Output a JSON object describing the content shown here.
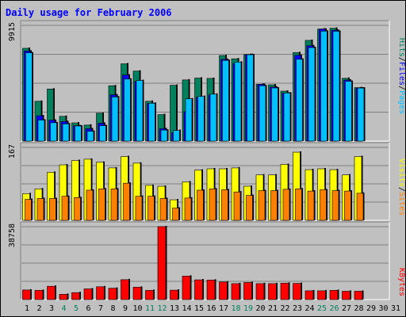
{
  "title": "Daily usage for February 2006",
  "colors": {
    "background": "#c0c0c0",
    "hits": "#00805c",
    "files": "#0000ff",
    "pages": "#00c0ff",
    "visits": "#ffff00",
    "sites": "#ff8000",
    "kbytes": "#ff0000",
    "weekday_label": "#000000",
    "weekend_label": "#00805c"
  },
  "chart_data": [
    {
      "type": "bar",
      "panel": "top",
      "ymax_label": "9915",
      "ylim": [
        0,
        9915
      ],
      "legend": [
        "Pages",
        "Files",
        "Hits"
      ],
      "legend_placement": "right",
      "grid": true,
      "categories": [
        "1",
        "2",
        "3",
        "4",
        "5",
        "6",
        "7",
        "8",
        "9",
        "10",
        "11",
        "12",
        "13",
        "14",
        "15",
        "16",
        "17",
        "18",
        "19",
        "20",
        "21",
        "22",
        "23",
        "24",
        "25",
        "26",
        "27",
        "28",
        "29",
        "30",
        "31"
      ],
      "weekend_days": [
        "4",
        "5",
        "11",
        "12",
        "18",
        "19",
        "25",
        "26"
      ],
      "series": [
        {
          "name": "Hits",
          "values": [
            7950,
            3410,
            4460,
            2120,
            1560,
            1370,
            2390,
            4740,
            6620,
            6000,
            3410,
            2270,
            4780,
            5240,
            5400,
            5370,
            7330,
            7050,
            7420,
            4860,
            4820,
            4280,
            7580,
            8630,
            9600,
            9670,
            5380,
            4580,
            0,
            0,
            0
          ]
        },
        {
          "name": "Files",
          "values": [
            7720,
            2170,
            1790,
            1670,
            1320,
            1060,
            1530,
            3960,
            5660,
            5120,
            3220,
            1060,
            720,
            2520,
            3770,
            3960,
            7000,
            6640,
            7420,
            4860,
            4630,
            4110,
            7350,
            8170,
            9600,
            9500,
            5230,
            4550,
            0,
            0,
            0
          ]
        },
        {
          "name": "Pages",
          "values": [
            7560,
            1800,
            1570,
            1470,
            1290,
            840,
            1320,
            3780,
            5310,
            5190,
            3240,
            940,
            910,
            3620,
            3830,
            4020,
            6910,
            6770,
            7400,
            4740,
            4550,
            4120,
            7010,
            8010,
            9420,
            9410,
            5120,
            4540,
            0,
            0,
            0
          ]
        }
      ]
    },
    {
      "type": "bar",
      "panel": "middle",
      "ymax_label": "167",
      "ylim": [
        0,
        167
      ],
      "legend": [
        "Sites",
        "Visits"
      ],
      "legend_placement": "right",
      "grid": true,
      "categories": [
        "1",
        "2",
        "3",
        "4",
        "5",
        "6",
        "7",
        "8",
        "9",
        "10",
        "11",
        "12",
        "13",
        "14",
        "15",
        "16",
        "17",
        "18",
        "19",
        "20",
        "21",
        "22",
        "23",
        "24",
        "25",
        "26",
        "27",
        "28",
        "29",
        "30",
        "31"
      ],
      "series": [
        {
          "name": "Visits",
          "values": [
            61,
            72,
            110,
            127,
            137,
            140,
            133,
            120,
            146,
            131,
            80,
            78,
            47,
            88,
            115,
            118,
            118,
            120,
            78,
            104,
            104,
            128,
            156,
            116,
            118,
            116,
            104,
            146,
            0,
            0,
            0
          ]
        },
        {
          "name": "Sites",
          "values": [
            48,
            50,
            50,
            55,
            52,
            69,
            72,
            72,
            85,
            55,
            55,
            50,
            28,
            51,
            69,
            72,
            70,
            65,
            57,
            68,
            68,
            71,
            72,
            67,
            70,
            68,
            67,
            62,
            0,
            0,
            0
          ]
        }
      ]
    },
    {
      "type": "bar",
      "panel": "bottom",
      "ymax_label": "38758",
      "ylim": [
        0,
        38758
      ],
      "legend": [
        "KBytes"
      ],
      "legend_placement": "right",
      "grid": true,
      "categories": [
        "1",
        "2",
        "3",
        "4",
        "5",
        "6",
        "7",
        "8",
        "9",
        "10",
        "11",
        "12",
        "13",
        "14",
        "15",
        "16",
        "17",
        "18",
        "19",
        "20",
        "21",
        "22",
        "23",
        "24",
        "25",
        "26",
        "27",
        "28",
        "29",
        "30",
        "31"
      ],
      "series": [
        {
          "name": "KBytes",
          "values": [
            5100,
            4890,
            7080,
            2800,
            3700,
            5680,
            6820,
            6030,
            10580,
            6600,
            4890,
            38760,
            5000,
            12470,
            10490,
            10370,
            9330,
            8480,
            9080,
            8480,
            8480,
            8730,
            8600,
            4660,
            4660,
            4890,
            4430,
            4430,
            0,
            0,
            0
          ]
        }
      ]
    }
  ]
}
